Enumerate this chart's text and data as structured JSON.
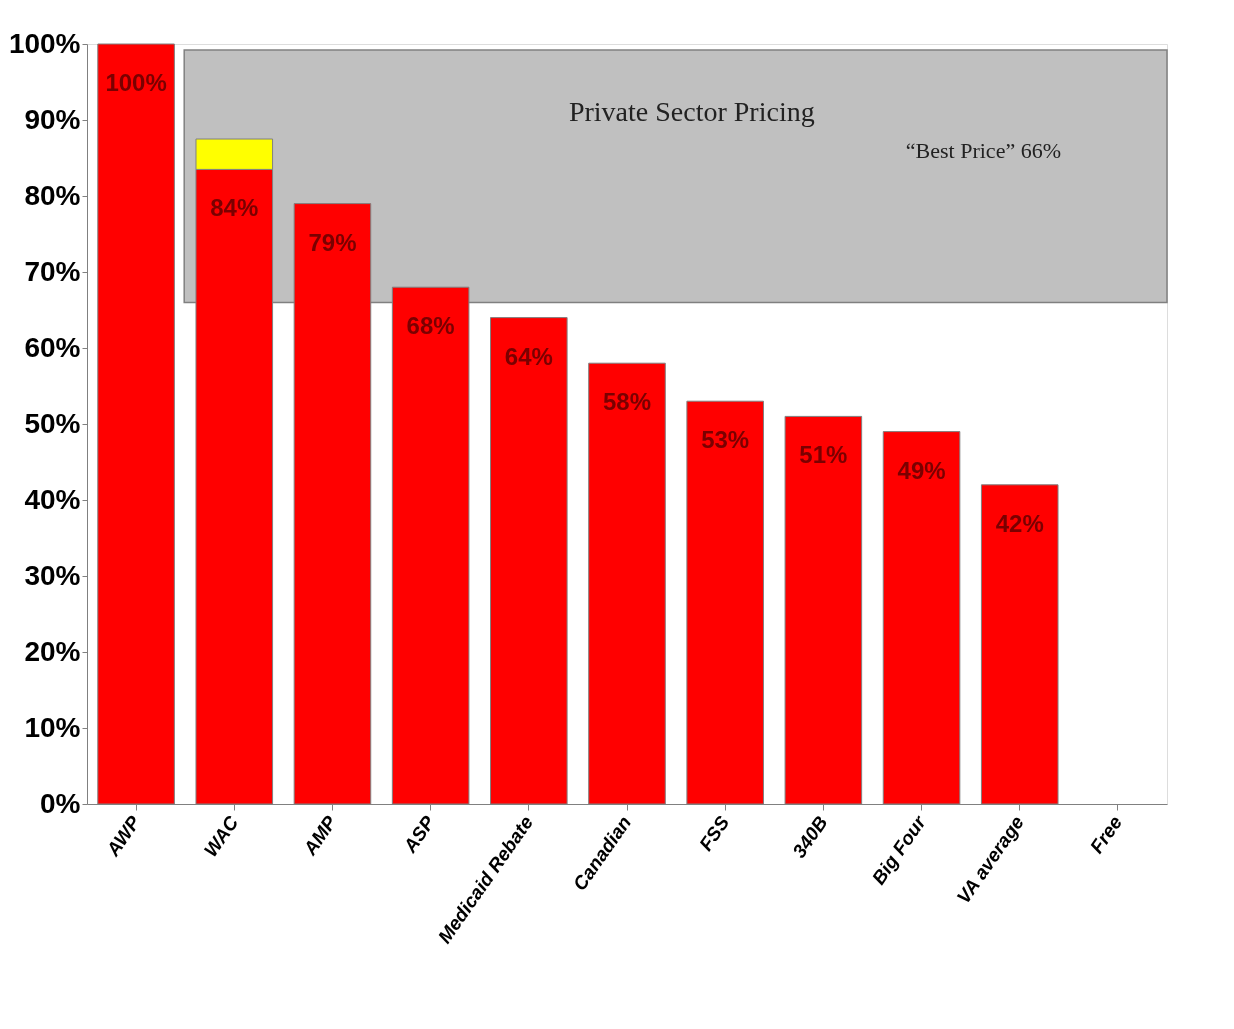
{
  "chart_data": {
    "type": "bar",
    "stacked": true,
    "categories": [
      "AWP",
      "WAC",
      "AMP",
      "ASP",
      "Medicaid Rebate",
      "Canadian",
      "FSS",
      "340B",
      "Big Four",
      "VA average",
      "Free"
    ],
    "series": [
      {
        "color": "#ff0000",
        "values": [
          100,
          83.5,
          79,
          68,
          64,
          58,
          53,
          51,
          49,
          42,
          null
        ],
        "value_labels": [
          "100%",
          "84%",
          "79%",
          "68%",
          "64%",
          "58%",
          "53%",
          "51%",
          "49%",
          "42%",
          null
        ]
      },
      {
        "color": "#ffff00",
        "values": [
          null,
          4,
          null,
          null,
          null,
          null,
          null,
          null,
          null,
          null,
          null
        ]
      }
    ],
    "ylim": [
      0,
      100
    ],
    "yticks": [
      {
        "value": 0,
        "label": "0%"
      },
      {
        "value": 10,
        "label": "10%"
      },
      {
        "value": 20,
        "label": "20%"
      },
      {
        "value": 30,
        "label": "30%"
      },
      {
        "value": 40,
        "label": "40%"
      },
      {
        "value": 50,
        "label": "50%"
      },
      {
        "value": 60,
        "label": "60%"
      },
      {
        "value": 70,
        "label": "70%"
      },
      {
        "value": 80,
        "label": "80%"
      },
      {
        "value": 90,
        "label": "90%"
      },
      {
        "value": 100,
        "label": "100%"
      }
    ],
    "bands": [
      {
        "axis": "y",
        "from": 66,
        "to": 99.2,
        "label": "Private Sector Pricing",
        "color": "#c0c0c0"
      }
    ],
    "annotations": [
      "“Best Price”  66%"
    ],
    "grid": false
  }
}
